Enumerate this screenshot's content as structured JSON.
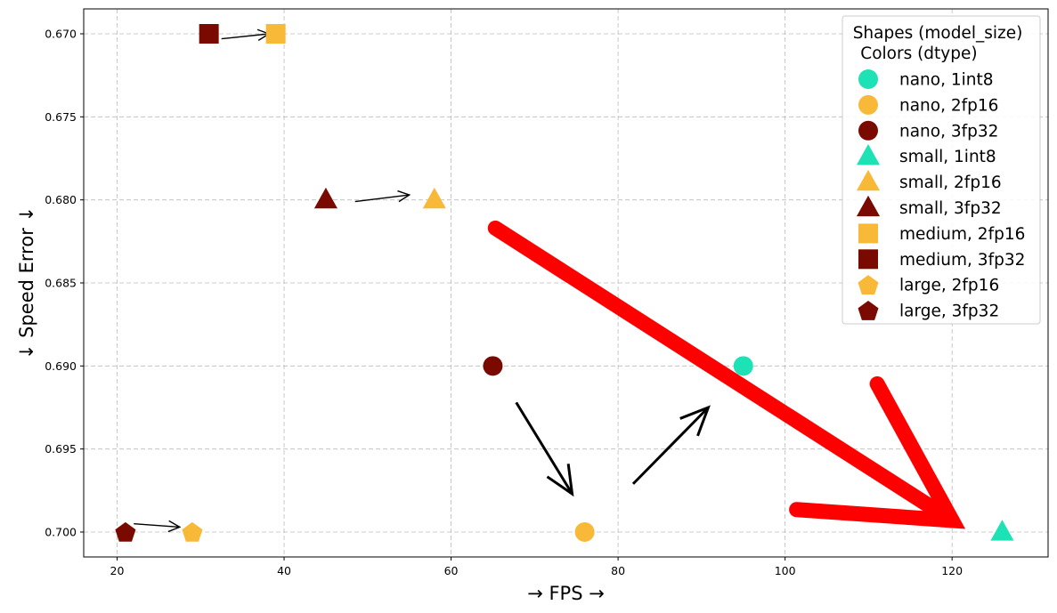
{
  "chart_data": {
    "type": "scatter",
    "title": "",
    "xlabel": "→ FPS →",
    "ylabel": "↓ Speed Error ↓",
    "xlim": [
      16,
      131.5
    ],
    "ylim": [
      0.7015,
      0.6685
    ],
    "y_inverted": true,
    "grid": true,
    "legend_position": "top-right",
    "xticks": [
      20,
      40,
      60,
      80,
      100,
      120
    ],
    "xtick_labels": [
      "20",
      "40",
      "60",
      "80",
      "100",
      "120"
    ],
    "yticks": [
      0.67,
      0.675,
      0.68,
      0.685,
      0.69,
      0.695,
      0.7
    ],
    "ytick_labels": [
      "0.670",
      "0.675",
      "0.680",
      "0.685",
      "0.690",
      "0.695",
      "0.700"
    ],
    "legend": {
      "title_line1": "Shapes (model_size)",
      "title_line2": " Colors (dtype)"
    },
    "colors": {
      "int8": "#1de2b6",
      "fp16": "#f9b938",
      "fp32": "#7a0a00",
      "highlight_arrow": "#ff0000",
      "annotation_arrow": "#000000"
    },
    "series": [
      {
        "name": "nano, 1int8",
        "marker": "circle",
        "dtype": "int8",
        "x": [
          95
        ],
        "y": [
          0.69
        ]
      },
      {
        "name": "nano, 2fp16",
        "marker": "circle",
        "dtype": "fp16",
        "x": [
          76
        ],
        "y": [
          0.7
        ]
      },
      {
        "name": "nano, 3fp32",
        "marker": "circle",
        "dtype": "fp32",
        "x": [
          65
        ],
        "y": [
          0.69
        ]
      },
      {
        "name": "small, 1int8",
        "marker": "triangle",
        "dtype": "int8",
        "x": [
          126
        ],
        "y": [
          0.7
        ]
      },
      {
        "name": "small, 2fp16",
        "marker": "triangle",
        "dtype": "fp16",
        "x": [
          58
        ],
        "y": [
          0.68
        ]
      },
      {
        "name": "small, 3fp32",
        "marker": "triangle",
        "dtype": "fp32",
        "x": [
          45
        ],
        "y": [
          0.68
        ]
      },
      {
        "name": "medium, 2fp16",
        "marker": "square",
        "dtype": "fp16",
        "x": [
          39
        ],
        "y": [
          0.67
        ]
      },
      {
        "name": "medium, 3fp32",
        "marker": "square",
        "dtype": "fp32",
        "x": [
          31
        ],
        "y": [
          0.67
        ]
      },
      {
        "name": "large, 2fp16",
        "marker": "pentagon",
        "dtype": "fp16",
        "x": [
          29
        ],
        "y": [
          0.7
        ]
      },
      {
        "name": "large, 3fp32",
        "marker": "pentagon",
        "dtype": "fp32",
        "x": [
          21
        ],
        "y": [
          0.7
        ]
      }
    ],
    "annotations": [
      {
        "kind": "arrow",
        "from": [
          32.5,
          0.6703
        ],
        "to": [
          38.2,
          0.67
        ],
        "color": "annotation_arrow",
        "width": 1.4,
        "head": "open-small"
      },
      {
        "kind": "arrow",
        "from": [
          48.5,
          0.6801
        ],
        "to": [
          55,
          0.6797
        ],
        "color": "annotation_arrow",
        "width": 1.4,
        "head": "open-small"
      },
      {
        "kind": "arrow",
        "from": [
          22,
          0.6995
        ],
        "to": [
          27.5,
          0.6997
        ],
        "color": "annotation_arrow",
        "width": 1.4,
        "head": "open-small"
      },
      {
        "kind": "arrow",
        "from": [
          67.8,
          0.6922
        ],
        "to": [
          74.5,
          0.6977
        ],
        "color": "annotation_arrow",
        "width": 3,
        "head": "open-large"
      },
      {
        "kind": "arrow",
        "from": [
          81.8,
          0.6971
        ],
        "to": [
          90.8,
          0.6925
        ],
        "color": "annotation_arrow",
        "width": 3,
        "head": "open-large"
      },
      {
        "kind": "arrow",
        "from": [
          65.3,
          0.6817
        ],
        "to": [
          120,
          0.6993
        ],
        "color": "highlight_arrow",
        "width": 17,
        "head": "open-huge"
      }
    ]
  }
}
